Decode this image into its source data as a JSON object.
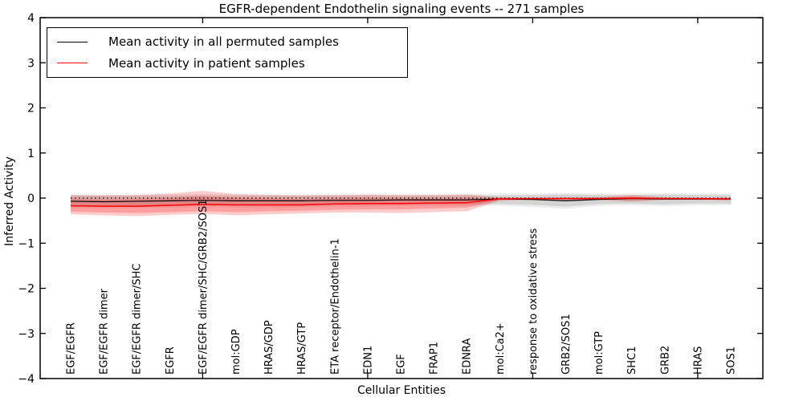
{
  "title": "EGFR-dependent Endothelin signaling events -- 271 samples",
  "axes": {
    "x_label": "Cellular Entities",
    "y_label": "Inferred Activity"
  },
  "legend": {
    "items": [
      {
        "label": "Mean activity in all permuted samples",
        "color": "#000000"
      },
      {
        "label": "Mean activity in patient samples",
        "color": "#ff0000"
      }
    ]
  },
  "chart_data": {
    "type": "line",
    "title": "EGFR-dependent Endothelin signaling events -- 271 samples",
    "xlabel": "Cellular Entities",
    "ylabel": "Inferred Activity",
    "ylim": [
      -4,
      4
    ],
    "grid": false,
    "legend_position": "upper left",
    "categories": [
      "EGF/EGFR",
      "EGF/EGFR dimer",
      "EGF/EGFR dimer/SHC",
      "EGFR",
      "EGF/EGFR dimer/SHC/GRB2/SOS1",
      "mol:GDP",
      "HRAS/GDP",
      "HRAS/GTP",
      "ETA receptor/Endothelin-1",
      "EDN1",
      "EGF",
      "FRAP1",
      "EDNRA",
      "mol:Ca2+",
      "response to oxidative stress",
      "GRB2/SOS1",
      "mol:GTP",
      "SHC1",
      "GRB2",
      "HRAS",
      "SOS1"
    ],
    "y_ticks": [
      {
        "value": 4,
        "label": "4"
      },
      {
        "value": 3,
        "label": "3"
      },
      {
        "value": 2,
        "label": "2"
      },
      {
        "value": 1,
        "label": "1"
      },
      {
        "value": 0,
        "label": "0"
      },
      {
        "value": -1,
        "label": "−1"
      },
      {
        "value": -2,
        "label": "−2"
      },
      {
        "value": -3,
        "label": "−3"
      },
      {
        "value": -4,
        "label": "−4"
      }
    ],
    "x_major_tick_indices": [
      4,
      9,
      14,
      19
    ],
    "reference_line": {
      "y": 0,
      "style": "dotted",
      "color": "#000000"
    },
    "series": [
      {
        "name": "Mean activity in all permuted samples",
        "color": "#000000",
        "values": [
          -0.07,
          -0.08,
          -0.07,
          -0.06,
          -0.05,
          -0.06,
          -0.06,
          -0.06,
          -0.05,
          -0.05,
          -0.04,
          -0.04,
          -0.04,
          -0.02,
          -0.03,
          -0.06,
          -0.03,
          -0.01,
          -0.02,
          -0.02,
          -0.02
        ]
      },
      {
        "name": "Mean activity in patient samples",
        "color": "#ff0000",
        "values": [
          -0.17,
          -0.18,
          -0.18,
          -0.16,
          -0.14,
          -0.15,
          -0.15,
          -0.15,
          -0.13,
          -0.12,
          -0.12,
          -0.11,
          -0.1,
          -0.02,
          -0.01,
          -0.01,
          -0.01,
          0.0,
          -0.01,
          -0.01,
          -0.02
        ]
      }
    ],
    "bands": [
      {
        "name": "permuted-range-outer",
        "fill": "rgba(0,0,0,0.07)",
        "upper": [
          0.08,
          0.08,
          0.08,
          0.08,
          0.09,
          0.08,
          0.08,
          0.08,
          0.08,
          0.08,
          0.08,
          0.08,
          0.09,
          0.09,
          0.1,
          0.11,
          0.1,
          0.1,
          0.11,
          0.1,
          0.1
        ],
        "lower": [
          -0.22,
          -0.23,
          -0.22,
          -0.21,
          -0.2,
          -0.21,
          -0.21,
          -0.21,
          -0.19,
          -0.19,
          -0.18,
          -0.18,
          -0.18,
          -0.17,
          -0.2,
          -0.24,
          -0.17,
          -0.16,
          -0.18,
          -0.16,
          -0.16
        ]
      },
      {
        "name": "permuted-range-inner",
        "fill": "rgba(0,0,0,0.10)",
        "upper": [
          0.05,
          0.05,
          0.05,
          0.05,
          0.06,
          0.05,
          0.05,
          0.05,
          0.05,
          0.05,
          0.05,
          0.05,
          0.06,
          0.06,
          0.07,
          0.08,
          0.07,
          0.07,
          0.08,
          0.07,
          0.07
        ],
        "lower": [
          -0.18,
          -0.19,
          -0.18,
          -0.17,
          -0.16,
          -0.17,
          -0.17,
          -0.17,
          -0.15,
          -0.15,
          -0.14,
          -0.14,
          -0.14,
          -0.13,
          -0.15,
          -0.19,
          -0.13,
          -0.12,
          -0.14,
          -0.12,
          -0.12
        ]
      },
      {
        "name": "patient-range-outer",
        "fill": "rgba(255,0,0,0.20)",
        "upper": [
          0.07,
          0.06,
          0.07,
          0.1,
          0.16,
          0.09,
          0.07,
          0.06,
          0.07,
          0.08,
          0.07,
          0.07,
          0.08,
          0.02,
          0.01,
          0.02,
          0.02,
          0.07,
          0.02,
          0.01,
          0.01
        ],
        "lower": [
          -0.36,
          -0.38,
          -0.4,
          -0.37,
          -0.35,
          -0.38,
          -0.36,
          -0.34,
          -0.32,
          -0.32,
          -0.33,
          -0.31,
          -0.29,
          -0.06,
          -0.04,
          -0.05,
          -0.04,
          -0.08,
          -0.04,
          -0.04,
          -0.05
        ]
      },
      {
        "name": "patient-range-inner",
        "fill": "rgba(255,0,0,0.22)",
        "upper": [
          -0.02,
          -0.03,
          -0.02,
          0.0,
          0.04,
          0.0,
          -0.01,
          -0.02,
          -0.01,
          0.0,
          -0.01,
          -0.01,
          0.0,
          0.0,
          0.0,
          0.0,
          0.0,
          0.03,
          0.0,
          0.0,
          0.0
        ],
        "lower": [
          -0.3,
          -0.32,
          -0.33,
          -0.31,
          -0.29,
          -0.31,
          -0.29,
          -0.28,
          -0.26,
          -0.25,
          -0.25,
          -0.23,
          -0.21,
          -0.04,
          -0.03,
          -0.03,
          -0.03,
          -0.05,
          -0.03,
          -0.03,
          -0.04
        ]
      }
    ]
  }
}
